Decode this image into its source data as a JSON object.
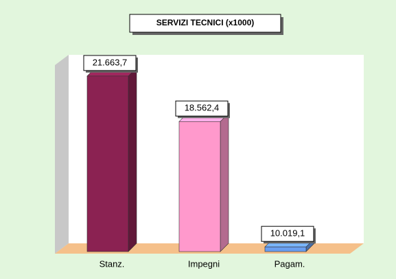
{
  "chart_data": {
    "type": "bar3d",
    "title": "SERVIZI TECNICI (x1000)",
    "categories": [
      "Stanz.",
      "Impegni",
      "Pagam."
    ],
    "values": [
      21663.7,
      18562.4,
      10019.1
    ],
    "value_labels": [
      "21.663,7",
      "18.562,4",
      "10.019,1"
    ],
    "colors": [
      "#8b2252",
      "#ff99cc",
      "#6a9ef0"
    ],
    "ylim": [
      9700,
      22500
    ]
  }
}
